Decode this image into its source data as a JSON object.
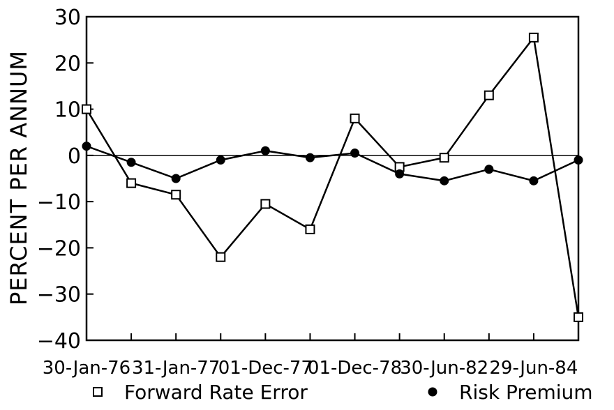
{
  "chart_data": {
    "type": "line",
    "title": "",
    "xlabel": "",
    "ylabel": "PERCENT PER ANNUM",
    "ylim": [
      -40,
      30
    ],
    "y_ticks": [
      30,
      20,
      10,
      0,
      -10,
      -20,
      -30,
      -40
    ],
    "x_tick_labels": [
      "30-Jan-76",
      "31-Jan-77",
      "01-Dec-77",
      "01-Dec-78",
      "30-Jun-82",
      "29-Jun-84"
    ],
    "grid": false,
    "zero_line": true,
    "legend_position": "bottom",
    "series": [
      {
        "name": "Forward Rate Error",
        "marker": "open-square",
        "values": [
          10,
          -6,
          -8.5,
          -22,
          -10.5,
          -16,
          8,
          -2.5,
          -0.5,
          13,
          25.5,
          -35
        ]
      },
      {
        "name": "Risk Premium",
        "marker": "filled-circle",
        "values": [
          2,
          -1.5,
          -5,
          -1,
          1,
          -0.5,
          0.5,
          -4,
          -5.5,
          -3,
          -5.5,
          -1
        ]
      }
    ]
  }
}
